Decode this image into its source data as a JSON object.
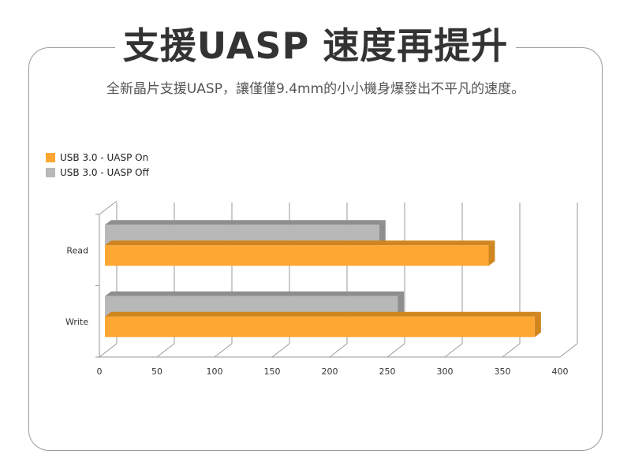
{
  "header": {
    "title": "支援UASP 速度再提升",
    "subtitle": "全新晶片支援UASP，讓僅僅9.4mm的小小機身爆發出不平凡的速度。"
  },
  "colors": {
    "on": "#FFA733",
    "on_dark": "#D0861E",
    "off": "#B8B8B8",
    "off_dark": "#8E8E8E",
    "grid": "#9A9A9A"
  },
  "chart_data": {
    "type": "bar",
    "orientation": "horizontal",
    "style": "3d",
    "categories": [
      "Read",
      "Write"
    ],
    "series": [
      {
        "name": "USB 3.0 - UASP On",
        "values": [
          338,
          378
        ]
      },
      {
        "name": "USB 3.0 - UASP Off",
        "values": [
          243,
          259
        ]
      }
    ],
    "xlim": [
      0,
      400
    ],
    "xticks": [
      "0",
      "50",
      "100",
      "150",
      "200",
      "250",
      "300",
      "350",
      "400"
    ],
    "grid": true,
    "legend": "top-left"
  }
}
